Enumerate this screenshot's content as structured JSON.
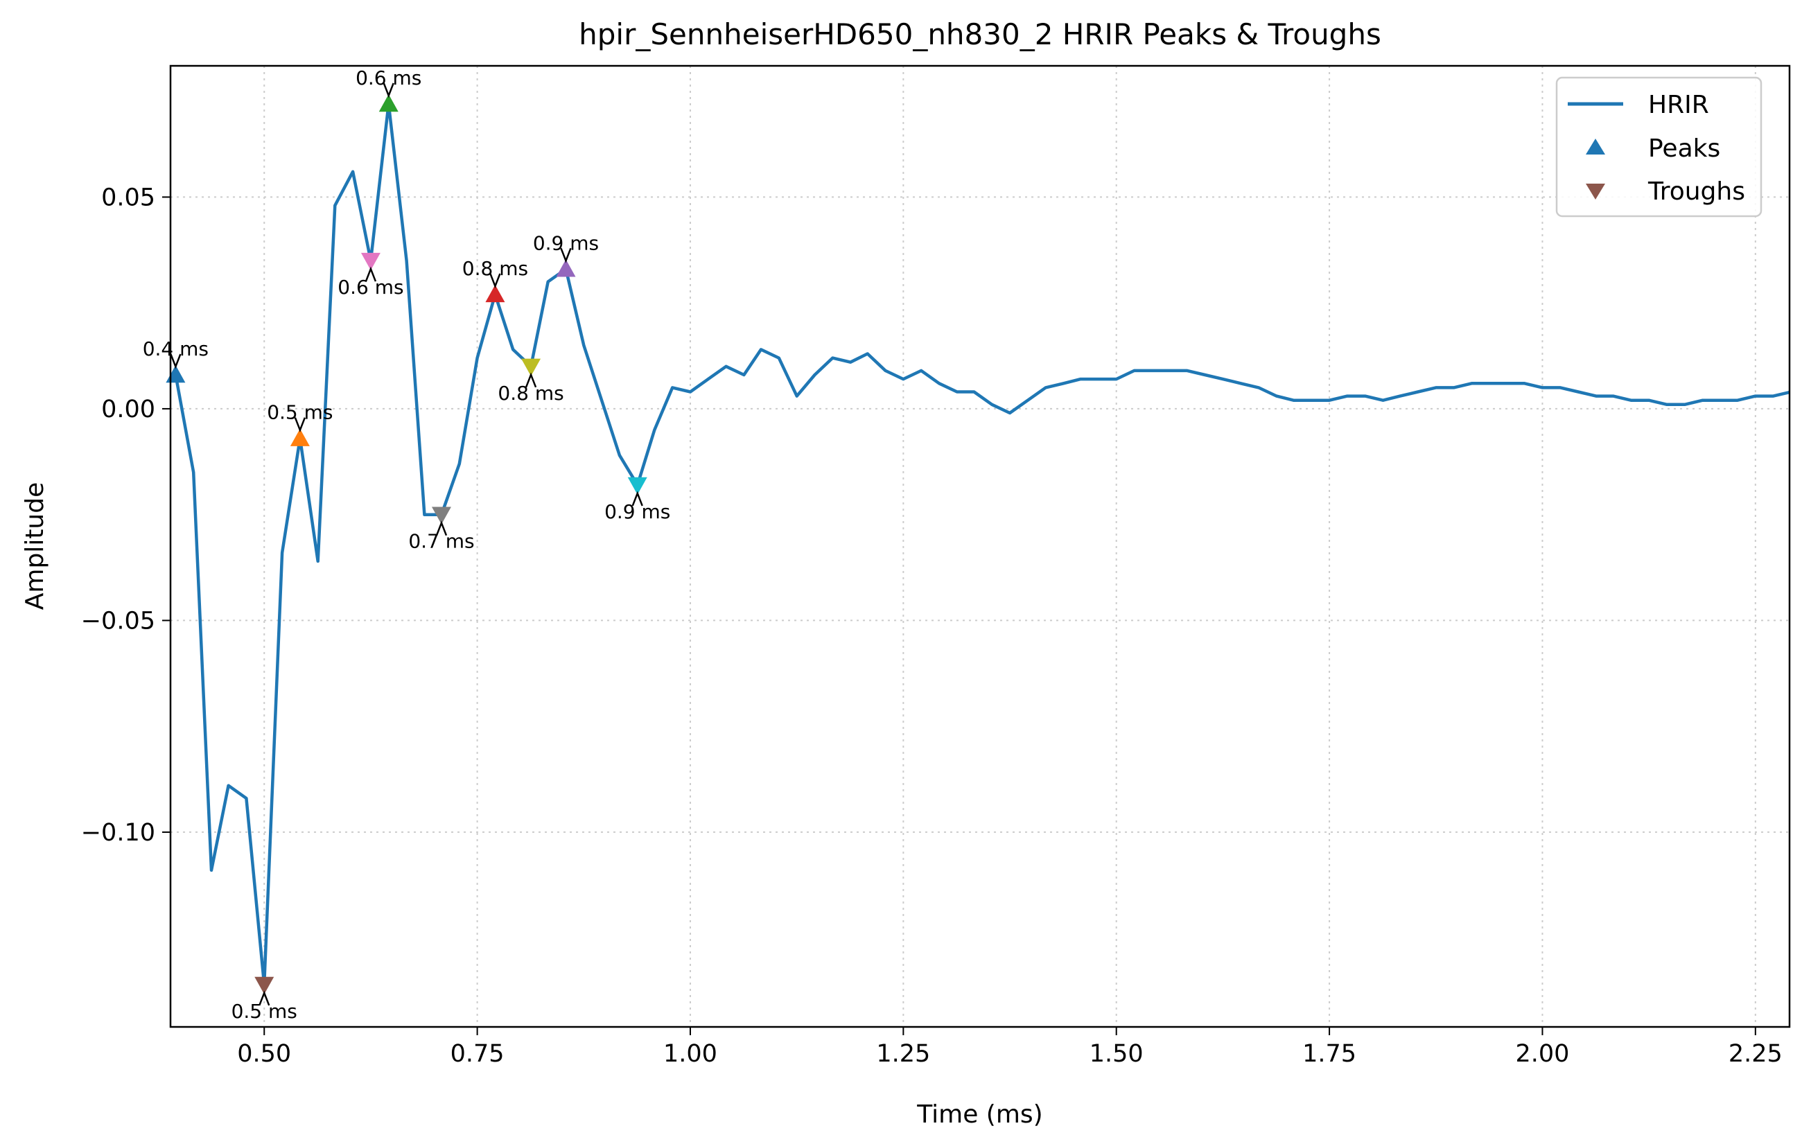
{
  "chart_data": {
    "type": "line",
    "title": "hpir_SennheiserHD650_nh830_2 HRIR Peaks & Troughs",
    "xlabel": "Time (ms)",
    "ylabel": "Amplitude",
    "xlim": [
      0.39,
      2.29
    ],
    "ylim": [
      -0.146,
      0.081
    ],
    "grid": true,
    "legend_position": "top-right",
    "x_ticks": [
      0.5,
      0.75,
      1.0,
      1.25,
      1.5,
      1.75,
      2.0,
      2.25
    ],
    "x_tick_labels": [
      "0.50",
      "0.75",
      "1.00",
      "1.25",
      "1.50",
      "1.75",
      "2.00",
      "2.25"
    ],
    "y_ticks": [
      0.05,
      0.0,
      -0.05,
      -0.1
    ],
    "y_tick_labels": [
      "0.05",
      "0.00",
      "−0.05",
      "−0.10"
    ],
    "legend": {
      "line_label": "HRIR",
      "peaks_label": "Peaks",
      "troughs_label": "Troughs",
      "peaks_color": "#1f77b4",
      "troughs_color": "#8c564b"
    },
    "series": [
      {
        "name": "HRIR",
        "color": "#1f77b4",
        "x": [
          0.396,
          0.417,
          0.438,
          0.458,
          0.479,
          0.5,
          0.521,
          0.542,
          0.563,
          0.583,
          0.604,
          0.625,
          0.646,
          0.667,
          0.688,
          0.708,
          0.729,
          0.75,
          0.771,
          0.792,
          0.813,
          0.833,
          0.854,
          0.875,
          0.896,
          0.917,
          0.938,
          0.958,
          0.979,
          1.0,
          1.021,
          1.042,
          1.063,
          1.083,
          1.104,
          1.125,
          1.146,
          1.167,
          1.188,
          1.208,
          1.229,
          1.25,
          1.271,
          1.292,
          1.313,
          1.333,
          1.354,
          1.375,
          1.396,
          1.417,
          1.438,
          1.458,
          1.479,
          1.5,
          1.521,
          1.542,
          1.563,
          1.583,
          1.604,
          1.625,
          1.646,
          1.667,
          1.688,
          1.708,
          1.729,
          1.75,
          1.771,
          1.792,
          1.813,
          1.833,
          1.854,
          1.875,
          1.896,
          1.917,
          1.938,
          1.958,
          1.979,
          2.0,
          2.021,
          2.042,
          2.063,
          2.083,
          2.104,
          2.125,
          2.146,
          2.167,
          2.188,
          2.208,
          2.229,
          2.25,
          2.271,
          2.292
        ],
        "y": [
          0.008,
          -0.015,
          -0.109,
          -0.089,
          -0.092,
          -0.136,
          -0.034,
          -0.007,
          -0.036,
          0.048,
          0.056,
          0.035,
          0.072,
          0.035,
          -0.025,
          -0.025,
          -0.013,
          0.012,
          0.027,
          0.014,
          0.01,
          0.03,
          0.033,
          0.015,
          0.002,
          -0.011,
          -0.018,
          -0.005,
          0.005,
          0.004,
          0.007,
          0.01,
          0.008,
          0.014,
          0.012,
          0.003,
          0.008,
          0.012,
          0.011,
          0.013,
          0.009,
          0.007,
          0.009,
          0.006,
          0.004,
          0.004,
          0.001,
          -0.001,
          0.002,
          0.005,
          0.006,
          0.007,
          0.007,
          0.007,
          0.009,
          0.009,
          0.009,
          0.009,
          0.008,
          0.007,
          0.006,
          0.005,
          0.003,
          0.002,
          0.002,
          0.002,
          0.003,
          0.003,
          0.002,
          0.003,
          0.004,
          0.005,
          0.005,
          0.006,
          0.006,
          0.006,
          0.006,
          0.005,
          0.005,
          0.004,
          0.003,
          0.003,
          0.002,
          0.002,
          0.001,
          0.001,
          0.002,
          0.002,
          0.002,
          0.003,
          0.003,
          0.004
        ]
      }
    ],
    "peaks": [
      {
        "x": 0.396,
        "y": 0.008,
        "label": "0.4 ms",
        "color": "#1f77b4"
      },
      {
        "x": 0.542,
        "y": -0.007,
        "label": "0.5 ms",
        "color": "#ff7f0e"
      },
      {
        "x": 0.646,
        "y": 0.072,
        "label": "0.6 ms",
        "color": "#2ca02c"
      },
      {
        "x": 0.771,
        "y": 0.027,
        "label": "0.8 ms",
        "color": "#d62728"
      },
      {
        "x": 0.854,
        "y": 0.033,
        "label": "0.9 ms",
        "color": "#9467bd"
      }
    ],
    "troughs": [
      {
        "x": 0.5,
        "y": -0.136,
        "label": "0.5 ms",
        "color": "#8c564b"
      },
      {
        "x": 0.625,
        "y": 0.035,
        "label": "0.6 ms",
        "color": "#e377c2"
      },
      {
        "x": 0.708,
        "y": -0.025,
        "label": "0.7 ms",
        "color": "#7f7f7f"
      },
      {
        "x": 0.813,
        "y": 0.01,
        "label": "0.8 ms",
        "color": "#bcbd22"
      },
      {
        "x": 0.938,
        "y": -0.018,
        "label": "0.9 ms",
        "color": "#17becf"
      }
    ]
  }
}
